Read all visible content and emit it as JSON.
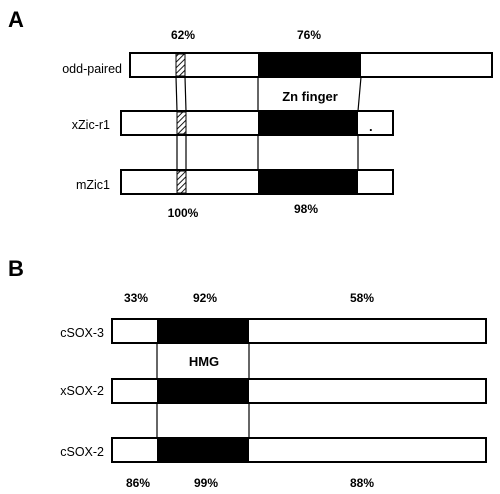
{
  "panel_a": {
    "letter": "A",
    "top_percents": [
      "62%",
      "76%"
    ],
    "bottom_percents": [
      "100%",
      "98%"
    ],
    "domain_label": "Zn finger",
    "proteins": [
      {
        "name": "odd-paired"
      },
      {
        "name": "xZic-r1",
        "mark": "."
      },
      {
        "name": "mZic1"
      }
    ]
  },
  "panel_b": {
    "letter": "B",
    "top_percents": [
      "33%",
      "92%",
      "58%"
    ],
    "bottom_percents": [
      "86%",
      "99%",
      "88%"
    ],
    "domain_label": "HMG",
    "proteins": [
      {
        "name": "cSOX-3"
      },
      {
        "name": "xSOX-2"
      },
      {
        "name": "cSOX-2"
      }
    ]
  },
  "colors": {
    "domain_fill": "#000000",
    "box_fill": "#ffffff",
    "stroke": "#000000"
  }
}
